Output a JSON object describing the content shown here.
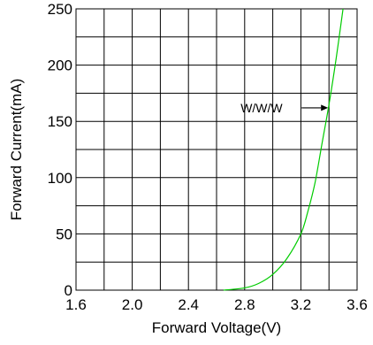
{
  "chart_data": {
    "type": "line",
    "title": "",
    "xlabel": "Forward Voltage(V)",
    "ylabel": "Forward Current(mA)",
    "xlim": [
      1.6,
      3.6
    ],
    "ylim": [
      0,
      250
    ],
    "grid": true,
    "x_ticks": [
      1.6,
      2.0,
      2.4,
      2.8,
      3.2,
      3.6
    ],
    "x_tick_labels": [
      "1.6",
      "2.0",
      "2.4",
      "2.8",
      "3.2",
      "3.6"
    ],
    "y_ticks": [
      0,
      50,
      100,
      150,
      200,
      250
    ],
    "y_tick_labels": [
      "0",
      "50",
      "100",
      "150",
      "200",
      "250"
    ],
    "x_grid_step": 0.2,
    "y_grid_step": 25,
    "series": [
      {
        "color": "#00cc00",
        "x": [
          2.65,
          2.8,
          2.9,
          3.0,
          3.1,
          3.2,
          3.25,
          3.3,
          3.35,
          3.4,
          3.45,
          3.5
        ],
        "y": [
          0,
          2,
          6,
          14,
          28,
          50,
          70,
          95,
          130,
          165,
          205,
          250
        ]
      }
    ],
    "annotation": {
      "text": "W/W/W",
      "arrow_target": {
        "x": 3.4,
        "y": 162
      }
    }
  }
}
